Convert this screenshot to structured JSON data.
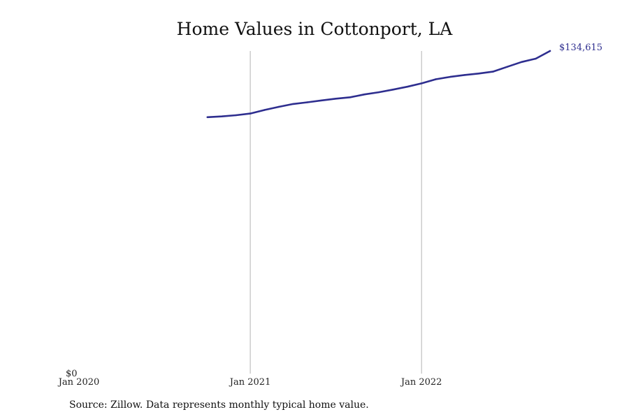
{
  "chart_data": {
    "type": "line",
    "title": "Home Values in Cottonport, LA",
    "xlabel": "",
    "ylabel": "",
    "x_ticks": [
      "Jan 2020",
      "Jan 2021",
      "Jan 2022"
    ],
    "y_ticks": [
      "$0"
    ],
    "ylim": [
      0,
      134615
    ],
    "xlim": [
      "2020-01",
      "2022-10"
    ],
    "grid": "vertical lines at yearly ticks",
    "series": [
      {
        "color": "#2e2e8f",
        "end_label": "$134,615",
        "x": [
          "2020-10",
          "2020-11",
          "2020-12",
          "2021-01",
          "2021-02",
          "2021-03",
          "2021-04",
          "2021-05",
          "2021-06",
          "2021-07",
          "2021-08",
          "2021-09",
          "2021-10",
          "2021-11",
          "2021-12",
          "2022-01",
          "2022-02",
          "2022-03",
          "2022-04",
          "2022-05",
          "2022-06",
          "2022-07",
          "2022-08",
          "2022-09",
          "2022-10"
        ],
        "values": [
          107000,
          107300,
          107800,
          108500,
          110000,
          111300,
          112500,
          113200,
          114000,
          114700,
          115300,
          116500,
          117400,
          118500,
          119700,
          121100,
          122800,
          123800,
          124600,
          125200,
          126000,
          128000,
          130000,
          131400,
          134615
        ]
      }
    ]
  },
  "footer": {
    "source": "Source: Zillow. Data represents monthly typical home value."
  }
}
